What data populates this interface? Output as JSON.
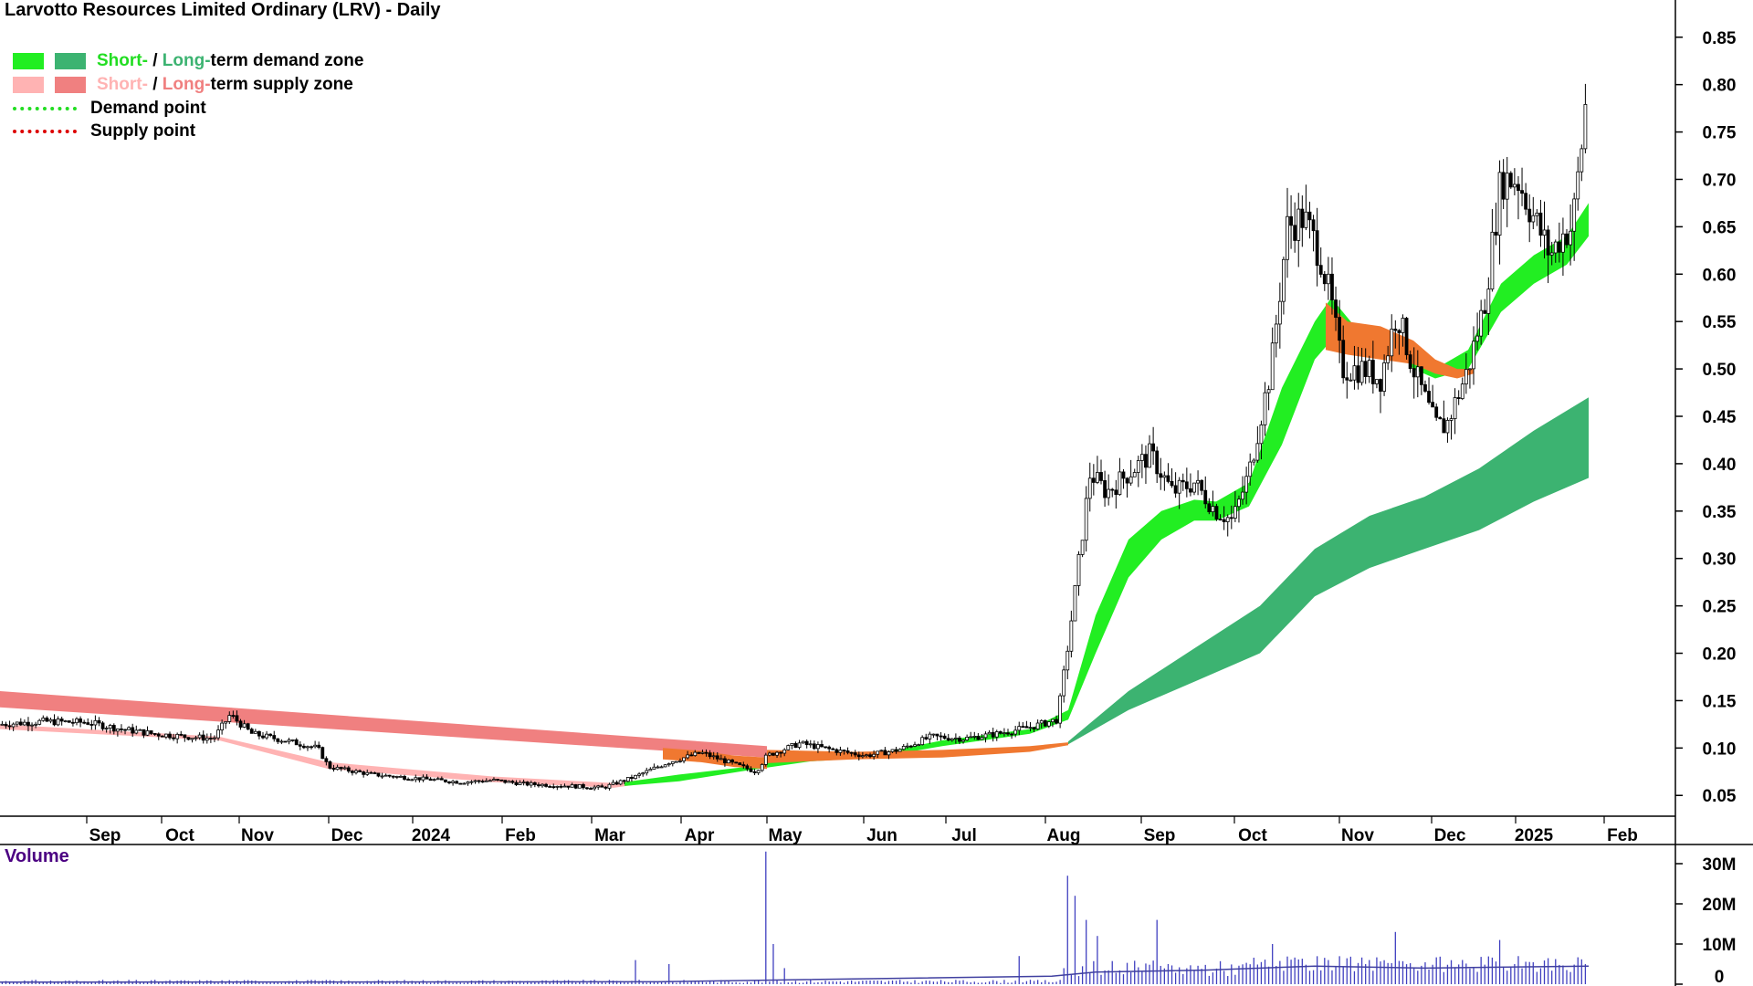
{
  "title": "Larvotto Resources Limited Ordinary (LRV) - Daily",
  "legend": {
    "short_label": "Short-",
    "sep": " / ",
    "long_label": "Long-",
    "demand_suffix": "term demand zone",
    "supply_suffix": "term supply zone",
    "demand_point": "Demand point",
    "supply_point": "Supply point"
  },
  "volume_label": "Volume",
  "colors": {
    "short_demand": "#22ee22",
    "long_demand": "#3cb371",
    "short_supply": "#ffb3b3",
    "long_supply": "#f08080",
    "overlap": "#f07830",
    "demand_point": "#22dd22",
    "supply_point": "#dd0000",
    "volume": "#4040c0",
    "volume_avg": "#4040a0"
  },
  "chart_data": {
    "type": "candlestick",
    "price_axis": {
      "ticks": [
        "0.85",
        "0.80",
        "0.75",
        "0.70",
        "0.65",
        "0.60",
        "0.55",
        "0.50",
        "0.45",
        "0.40",
        "0.35",
        "0.30",
        "0.25",
        "0.20",
        "0.15",
        "0.10",
        "0.05"
      ],
      "range": [
        0.03,
        0.87
      ]
    },
    "x_axis": {
      "labels": [
        "Sep",
        "Oct",
        "Nov",
        "Dec",
        "2024",
        "Feb",
        "Mar",
        "Apr",
        "May",
        "Jun",
        "Jul",
        "Aug",
        "Sep",
        "Oct",
        "Nov",
        "Dec",
        "2025",
        "Feb"
      ]
    },
    "volume_axis": {
      "ticks": [
        "30M",
        "20M",
        "10M",
        "0"
      ],
      "range": [
        0,
        35
      ]
    },
    "price_path": [
      [
        0,
        0.125
      ],
      [
        40,
        0.128
      ],
      [
        80,
        0.127
      ],
      [
        110,
        0.12
      ],
      [
        140,
        0.115
      ],
      [
        170,
        0.112
      ],
      [
        195,
        0.11
      ],
      [
        210,
        0.135
      ],
      [
        230,
        0.115
      ],
      [
        260,
        0.108
      ],
      [
        290,
        0.1
      ],
      [
        300,
        0.08
      ],
      [
        340,
        0.072
      ],
      [
        380,
        0.068
      ],
      [
        420,
        0.064
      ],
      [
        450,
        0.066
      ],
      [
        480,
        0.062
      ],
      [
        520,
        0.06
      ],
      [
        550,
        0.058
      ],
      [
        580,
        0.07
      ],
      [
        610,
        0.085
      ],
      [
        640,
        0.095
      ],
      [
        665,
        0.085
      ],
      [
        690,
        0.075
      ],
      [
        700,
        0.092
      ],
      [
        730,
        0.105
      ],
      [
        760,
        0.098
      ],
      [
        790,
        0.092
      ],
      [
        820,
        0.098
      ],
      [
        850,
        0.112
      ],
      [
        880,
        0.11
      ],
      [
        910,
        0.115
      ],
      [
        940,
        0.122
      ],
      [
        965,
        0.13
      ],
      [
        975,
        0.21
      ],
      [
        985,
        0.3
      ],
      [
        995,
        0.39
      ],
      [
        1010,
        0.37
      ],
      [
        1030,
        0.39
      ],
      [
        1050,
        0.41
      ],
      [
        1070,
        0.37
      ],
      [
        1090,
        0.38
      ],
      [
        1110,
        0.35
      ],
      [
        1125,
        0.34
      ],
      [
        1140,
        0.39
      ],
      [
        1160,
        0.5
      ],
      [
        1175,
        0.65
      ],
      [
        1190,
        0.66
      ],
      [
        1205,
        0.62
      ],
      [
        1215,
        0.57
      ],
      [
        1225,
        0.5
      ],
      [
        1245,
        0.5
      ],
      [
        1260,
        0.49
      ],
      [
        1275,
        0.56
      ],
      [
        1290,
        0.5
      ],
      [
        1310,
        0.44
      ],
      [
        1320,
        0.44
      ],
      [
        1340,
        0.5
      ],
      [
        1355,
        0.57
      ],
      [
        1370,
        0.7
      ],
      [
        1385,
        0.7
      ],
      [
        1400,
        0.66
      ],
      [
        1415,
        0.62
      ],
      [
        1425,
        0.64
      ],
      [
        1435,
        0.65
      ],
      [
        1445,
        0.75
      ],
      [
        1450,
        0.82
      ]
    ],
    "zones": {
      "long_supply": {
        "x": [
          0,
          700
        ],
        "top": [
          0.16,
          0.102
        ],
        "bot": [
          0.143,
          0.09
        ]
      },
      "short_supply": {
        "x": [
          0,
          200,
          300,
          450,
          560,
          610
        ],
        "top": [
          0.125,
          0.112,
          0.085,
          0.07,
          0.063,
          0.07
        ],
        "bot": [
          0.12,
          0.108,
          0.078,
          0.064,
          0.058,
          0.066
        ]
      },
      "overlap_early": {
        "x": [
          605,
          640,
          670,
          700
        ],
        "top": [
          0.1,
          0.097,
          0.092,
          0.09
        ],
        "bot": [
          0.088,
          0.085,
          0.08,
          0.078
        ]
      },
      "overlap_mid": {
        "x": [
          700,
          780,
          860,
          940,
          975
        ],
        "top": [
          0.098,
          0.096,
          0.098,
          0.102,
          0.106
        ],
        "bot": [
          0.084,
          0.088,
          0.09,
          0.096,
          0.103
        ]
      },
      "short_demand": {
        "x": [
          570,
          620,
          680,
          740,
          800,
          860,
          940,
          975,
          1000,
          1030,
          1060,
          1090,
          1110,
          1140,
          1170,
          1200,
          1215,
          1240,
          1270,
          1290,
          1310,
          1340,
          1370,
          1400,
          1430,
          1450
        ],
        "top": [
          0.064,
          0.072,
          0.08,
          0.093,
          0.094,
          0.108,
          0.12,
          0.14,
          0.24,
          0.32,
          0.35,
          0.362,
          0.36,
          0.38,
          0.48,
          0.55,
          0.575,
          0.54,
          0.54,
          0.52,
          0.5,
          0.52,
          0.59,
          0.62,
          0.64,
          0.675
        ],
        "bot": [
          0.06,
          0.065,
          0.076,
          0.086,
          0.09,
          0.102,
          0.115,
          0.13,
          0.2,
          0.28,
          0.32,
          0.34,
          0.34,
          0.355,
          0.42,
          0.51,
          0.53,
          0.52,
          0.53,
          0.5,
          0.49,
          0.5,
          0.56,
          0.59,
          0.61,
          0.64
        ]
      },
      "short_supply_mid": {
        "x": [
          1210,
          1230,
          1260,
          1290,
          1310,
          1330,
          1345
        ],
        "top": [
          0.57,
          0.55,
          0.545,
          0.53,
          0.51,
          0.5,
          0.5
        ],
        "bot": [
          0.52,
          0.515,
          0.51,
          0.505,
          0.495,
          0.49,
          0.495
        ]
      },
      "long_demand": {
        "x": [
          975,
          1030,
          1090,
          1150,
          1200,
          1250,
          1300,
          1350,
          1400,
          1450
        ],
        "top": [
          0.107,
          0.16,
          0.205,
          0.25,
          0.31,
          0.345,
          0.365,
          0.395,
          0.435,
          0.47
        ],
        "bot": [
          0.104,
          0.14,
          0.17,
          0.2,
          0.26,
          0.29,
          0.31,
          0.33,
          0.36,
          0.385
        ]
      }
    },
    "volume_spikes": [
      [
        210,
        1
      ],
      [
        300,
        1
      ],
      [
        580,
        6
      ],
      [
        612,
        5
      ],
      [
        698,
        33
      ],
      [
        705,
        10
      ],
      [
        715,
        4
      ],
      [
        930,
        7
      ],
      [
        975,
        27
      ],
      [
        980,
        22
      ],
      [
        992,
        16
      ],
      [
        1000,
        12
      ],
      [
        1055,
        16
      ],
      [
        1160,
        10
      ],
      [
        1275,
        13
      ],
      [
        1370,
        11
      ]
    ]
  }
}
